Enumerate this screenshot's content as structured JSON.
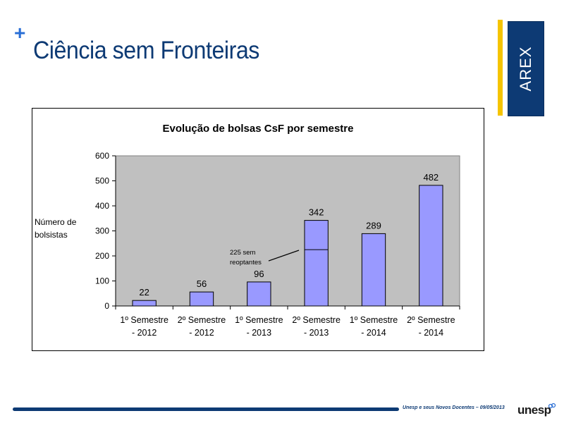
{
  "slide": {
    "plus_symbol": "+",
    "title": "Ciência sem Fronteiras",
    "side_label": "AREX",
    "footer": "Unesp e seus Novos Docentes – 09/05/2013",
    "logo_text": "unesp",
    "colors": {
      "navy": "#0d3a74",
      "yellow": "#f5c400",
      "accent_blue": "#2a6fd6"
    }
  },
  "chart_data": {
    "type": "bar",
    "title": "Evolução de bolsas CsF por semestre",
    "ylabel": "Número de bolsistas",
    "xlabel": "",
    "categories": [
      [
        "1º Semestre",
        "- 2012"
      ],
      [
        "2º Semestre",
        "- 2012"
      ],
      [
        "1º Semestre",
        "- 2013"
      ],
      [
        "2º Semestre",
        "- 2013"
      ],
      [
        "1º Semestre",
        "- 2014"
      ],
      [
        "2º Semestre",
        "- 2014"
      ]
    ],
    "values": [
      22,
      56,
      96,
      342,
      289,
      482
    ],
    "ylim": [
      0,
      600
    ],
    "yticks": [
      0,
      100,
      200,
      300,
      400,
      500,
      600
    ],
    "grid": false,
    "plot_background": "#c0c0c0",
    "bar_color": "#9999ff",
    "annotation": {
      "category_index": 3,
      "value": 225,
      "text": [
        "225 sem",
        "reoptantes"
      ]
    }
  }
}
